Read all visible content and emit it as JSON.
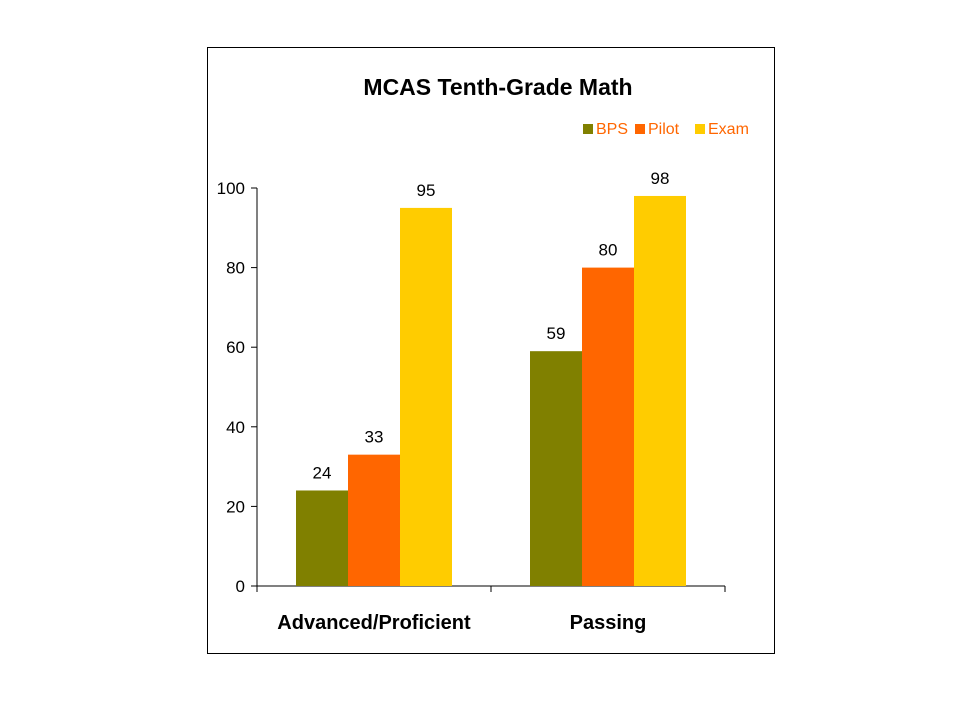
{
  "chart_data": {
    "type": "bar",
    "title": "MCAS Tenth-Grade Math",
    "xlabel": "",
    "ylabel": "",
    "categories": [
      "Advanced/Proficient",
      "Passing"
    ],
    "series": [
      {
        "name": "BPS",
        "values": [
          24,
          59
        ],
        "labels": [
          "24",
          "59"
        ],
        "color": "#808000"
      },
      {
        "name": "Pilot",
        "values": [
          33,
          80
        ],
        "labels": [
          "33",
          "80"
        ],
        "color": "#FF6600"
      },
      {
        "name": "Exam",
        "values": [
          95,
          98
        ],
        "labels": [
          "95",
          "98"
        ],
        "color": "#FFCC00"
      }
    ],
    "ylim": [
      0,
      100
    ],
    "yticks": [
      0,
      20,
      40,
      60,
      80,
      100
    ],
    "ytick_labels": [
      "0",
      "20",
      "40",
      "60",
      "80",
      "100"
    ],
    "grid": false,
    "legend_position": "top-right",
    "legend_text_color": "#FF6600"
  }
}
